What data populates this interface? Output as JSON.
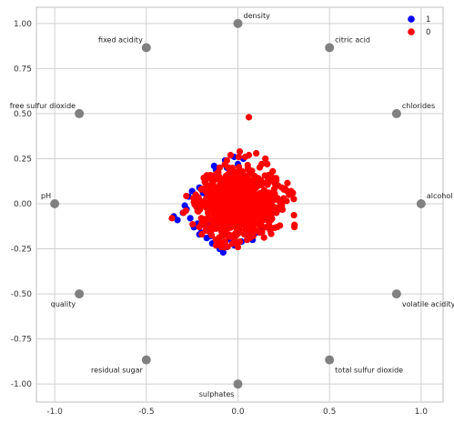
{
  "chart_data": {
    "type": "scatter",
    "title": "",
    "xlabel": "",
    "ylabel": "",
    "xlim": [
      -1.1,
      1.12
    ],
    "ylim": [
      -1.1,
      1.09
    ],
    "grid": true,
    "legend_placement": "top-right",
    "x_ticks": [
      "-1.0",
      "-0.5",
      "0.0",
      "0.5",
      "1.0"
    ],
    "x_tick_values": [
      -1.0,
      -0.5,
      0.0,
      0.5,
      1.0
    ],
    "y_ticks": [
      "1.00",
      "0.75",
      "0.50",
      "0.25",
      "0.00",
      "-0.25",
      "-0.50",
      "-0.75",
      "-1.00"
    ],
    "y_tick_values": [
      1.0,
      0.75,
      0.5,
      0.25,
      0.0,
      -0.25,
      -0.5,
      -0.75,
      -1.0
    ],
    "anchors": [
      {
        "name": "alcohol",
        "x": 1.0,
        "y": 0.0,
        "label_side": "above-right"
      },
      {
        "name": "chlorides",
        "x": 0.866,
        "y": 0.5,
        "label_side": "above-right"
      },
      {
        "name": "citric acid",
        "x": 0.5,
        "y": 0.866,
        "label_side": "above-right"
      },
      {
        "name": "density",
        "x": 0.0,
        "y": 1.0,
        "label_side": "above-right"
      },
      {
        "name": "fixed acidity",
        "x": -0.5,
        "y": 0.866,
        "label_side": "above-left"
      },
      {
        "name": "free sulfur dioxide",
        "x": -0.866,
        "y": 0.5,
        "label_side": "above-left"
      },
      {
        "name": "pH",
        "x": -1.0,
        "y": 0.0,
        "label_side": "above-left"
      },
      {
        "name": "quality",
        "x": -0.866,
        "y": -0.5,
        "label_side": "below-left"
      },
      {
        "name": "residual sugar",
        "x": -0.5,
        "y": -0.866,
        "label_side": "below-left"
      },
      {
        "name": "sulphates",
        "x": 0.0,
        "y": -1.0,
        "label_side": "below-left"
      },
      {
        "name": "total sulfur dioxide",
        "x": 0.5,
        "y": -0.866,
        "label_side": "below-right"
      },
      {
        "name": "volatile acidity",
        "x": 0.866,
        "y": -0.5,
        "label_side": "below-right"
      }
    ],
    "series": [
      {
        "name": "1",
        "color": "#0000ff",
        "points": [
          [
            -0.02,
            0.26
          ],
          [
            0.0,
            0.22
          ],
          [
            -0.07,
            0.24
          ],
          [
            -0.12,
            0.19
          ],
          [
            -0.16,
            0.15
          ],
          [
            -0.21,
            0.09
          ],
          [
            -0.27,
            0.04
          ],
          [
            -0.29,
            -0.01
          ],
          [
            -0.3,
            -0.05
          ],
          [
            -0.35,
            -0.07
          ],
          [
            -0.33,
            -0.09
          ],
          [
            -0.24,
            -0.13
          ],
          [
            -0.2,
            -0.16
          ],
          [
            -0.17,
            -0.19
          ],
          [
            -0.14,
            -0.22
          ],
          [
            -0.1,
            -0.25
          ],
          [
            -0.06,
            -0.24
          ],
          [
            -0.02,
            -0.23
          ],
          [
            0.02,
            -0.21
          ],
          [
            0.06,
            -0.18
          ],
          [
            0.1,
            -0.16
          ],
          [
            0.13,
            -0.13
          ],
          [
            -0.26,
            -0.08
          ],
          [
            -0.22,
            -0.11
          ],
          [
            -0.23,
            0.02
          ],
          [
            -0.19,
            0.06
          ],
          [
            -0.16,
            -0.12
          ],
          [
            -0.12,
            -0.2
          ],
          [
            -0.18,
            0.12
          ],
          [
            -0.13,
            0.21
          ],
          [
            -0.08,
            -0.27
          ],
          [
            0.03,
            0.25
          ],
          [
            -0.25,
            0.07
          ],
          [
            -0.21,
            -0.17
          ],
          [
            -0.04,
            -0.2
          ],
          [
            0.08,
            -0.2
          ],
          [
            -0.28,
            -0.03
          ],
          [
            -0.15,
            -0.18
          ],
          [
            -0.11,
            0.17
          ],
          [
            -0.06,
            0.2
          ]
        ]
      },
      {
        "name": "0",
        "color": "#ff0000",
        "points": [
          [
            0.06,
            0.48
          ],
          [
            0.01,
            0.29
          ],
          [
            0.06,
            0.27
          ],
          [
            0.1,
            0.28
          ],
          [
            0.15,
            0.25
          ],
          [
            0.16,
            0.22
          ],
          [
            0.19,
            0.18
          ],
          [
            0.21,
            0.13
          ],
          [
            0.24,
            0.09
          ],
          [
            0.27,
            0.07
          ],
          [
            0.29,
            0.07
          ],
          [
            0.28,
            0.05
          ],
          [
            0.25,
            0.03
          ],
          [
            0.24,
            -0.01
          ],
          [
            0.23,
            -0.03
          ],
          [
            0.21,
            -0.05
          ],
          [
            0.18,
            -0.09
          ],
          [
            0.15,
            -0.13
          ],
          [
            0.12,
            -0.16
          ],
          [
            0.08,
            -0.18
          ],
          [
            0.05,
            -0.2
          ],
          [
            0.01,
            -0.21
          ],
          [
            -0.03,
            -0.22
          ],
          [
            -0.07,
            -0.21
          ],
          [
            -0.12,
            -0.2
          ],
          [
            -0.15,
            -0.16
          ],
          [
            -0.18,
            -0.12
          ],
          [
            -0.2,
            -0.08
          ],
          [
            -0.22,
            -0.04
          ],
          [
            -0.24,
            0.01
          ],
          [
            -0.23,
            0.05
          ],
          [
            -0.2,
            0.08
          ],
          [
            -0.18,
            0.12
          ],
          [
            -0.14,
            0.15
          ],
          [
            -0.1,
            0.2
          ],
          [
            -0.06,
            0.24
          ],
          [
            -0.36,
            -0.08
          ],
          [
            -0.12,
            -0.23
          ],
          [
            -0.09,
            -0.24
          ],
          [
            0.23,
            0.01
          ],
          [
            0.26,
            0.08
          ],
          [
            0.04,
            0.26
          ],
          [
            0.2,
            -0.02
          ],
          [
            0.17,
            0.16
          ],
          [
            0.13,
            0.22
          ],
          [
            -0.17,
            -0.09
          ],
          [
            0.0,
            -0.24
          ],
          [
            0.18,
            0.06
          ],
          [
            0.22,
            0.1
          ],
          [
            0.1,
            -0.15
          ],
          [
            -0.04,
            0.27
          ],
          [
            0.3,
            0.06
          ]
        ],
        "dense_core": {
          "center": [
            0.0,
            0.0
          ],
          "rx": 0.18,
          "ry": 0.17,
          "count": 900,
          "seed": 7
        }
      }
    ]
  }
}
